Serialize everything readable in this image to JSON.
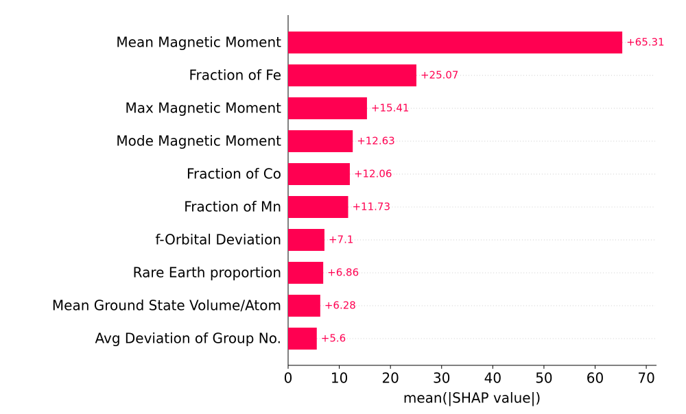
{
  "chart_data": {
    "type": "bar",
    "orientation": "horizontal",
    "xlabel": "mean(|SHAP value|)",
    "categories": [
      "Mean Magnetic Moment",
      "Fraction of Fe",
      "Max Magnetic Moment",
      "Mode Magnetic Moment",
      "Fraction of Co",
      "Fraction of Mn",
      "f-Orbital Deviation",
      "Rare Earth proportion",
      "Mean Ground State Volume/Atom",
      "Avg Deviation of Group No."
    ],
    "values": [
      65.31,
      25.07,
      15.41,
      12.63,
      12.06,
      11.73,
      7.1,
      6.86,
      6.28,
      5.6
    ],
    "value_labels": [
      "+65.31",
      "+25.07",
      "+15.41",
      "+12.63",
      "+12.06",
      "+11.73",
      "+7.1",
      "+6.86",
      "+6.28",
      "+5.6"
    ],
    "color": "#ff0051",
    "xlim": [
      0,
      72
    ],
    "xticks": [
      0,
      10,
      20,
      30,
      40,
      50,
      60,
      70
    ],
    "grid": true
  }
}
